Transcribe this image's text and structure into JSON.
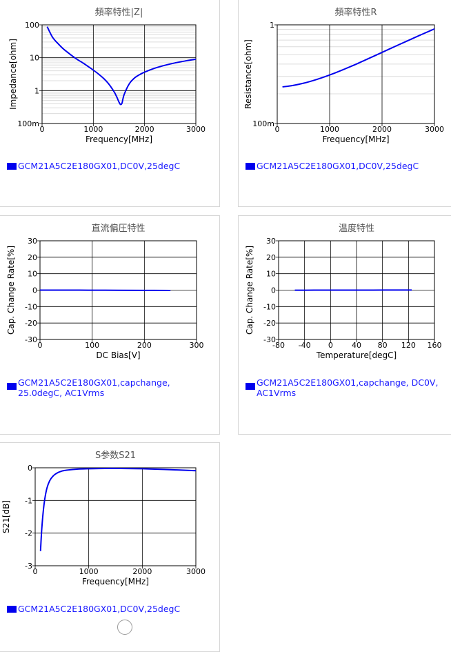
{
  "charts": [
    {
      "id": "impedance",
      "title": "頻率特性|Z|",
      "legend": [
        "GCM21A5C2E180GX01,DC0V,25degC"
      ],
      "chart_data": {
        "type": "line",
        "title": "頻率特性|Z|",
        "xlabel": "Frequency[MHz]",
        "ylabel": "Impedance[ohm]",
        "xlim": [
          0,
          3000
        ],
        "ylim": [
          0.1,
          100
        ],
        "yscale": "log",
        "xticks": [
          "0",
          "1000",
          "2000",
          "3000"
        ],
        "yticks": [
          "100m",
          "1",
          "10",
          "100"
        ],
        "series": [
          {
            "name": "GCM21A5C2E180GX01,DC0V,25degC",
            "color": "#0000ee",
            "x": [
              100,
              200,
              300,
              400,
              500,
              600,
              700,
              800,
              900,
              1000,
              1100,
              1200,
              1300,
              1400,
              1450,
              1500,
              1530,
              1560,
              1600,
              1700,
              1800,
              1900,
              2000,
              2200,
              2400,
              2600,
              2800,
              3000
            ],
            "y": [
              88,
              43,
              28,
              19.5,
              14.5,
              11,
              8.6,
              6.9,
              5.4,
              4.2,
              3.2,
              2.35,
              1.6,
              0.95,
              0.68,
              0.45,
              0.38,
              0.42,
              0.75,
              1.6,
              2.4,
              3.05,
              3.65,
              4.8,
              5.9,
              7.0,
              8.0,
              9.0
            ]
          }
        ]
      }
    },
    {
      "id": "resistance",
      "title": "頻率特性R",
      "legend": [
        "GCM21A5C2E180GX01,DC0V,25degC"
      ],
      "chart_data": {
        "type": "line",
        "title": "頻率特性R",
        "xlabel": "Frequency[MHz]",
        "ylabel": "Resistance[ohm]",
        "xlim": [
          0,
          3000
        ],
        "ylim": [
          0.1,
          1
        ],
        "yscale": "log",
        "xticks": [
          "0",
          "1000",
          "2000",
          "3000"
        ],
        "yticks": [
          "100m",
          "1"
        ],
        "series": [
          {
            "name": "GCM21A5C2E180GX01,DC0V,25degC",
            "color": "#0000ee",
            "x": [
              100,
              300,
              500,
              700,
              900,
              1100,
              1300,
              1500,
              1700,
              1900,
              2100,
              2300,
              2500,
              2700,
              2900,
              3000
            ],
            "y": [
              0.235,
              0.243,
              0.256,
              0.274,
              0.297,
              0.325,
              0.359,
              0.398,
              0.445,
              0.497,
              0.556,
              0.622,
              0.694,
              0.775,
              0.862,
              0.91
            ]
          }
        ]
      }
    },
    {
      "id": "dcbias",
      "title": "直流偏圧特性",
      "legend": [
        "GCM21A5C2E180GX01,capchange,",
        "25.0degC, AC1Vrms"
      ],
      "chart_data": {
        "type": "line",
        "title": "直流偏圧特性",
        "xlabel": "DC Bias[V]",
        "ylabel": "Cap. Change Rate[%]",
        "xlim": [
          0,
          300
        ],
        "ylim": [
          -30,
          30
        ],
        "xticks": [
          "0",
          "100",
          "200",
          "300"
        ],
        "yticks": [
          "-30",
          "-20",
          "-10",
          "0",
          "10",
          "20",
          "30"
        ],
        "series": [
          {
            "name": "GCM21A5C2E180GX01,capchange, 25.0degC, AC1Vrms",
            "color": "#0000ee",
            "x": [
              0,
              50,
              100,
              150,
              200,
              250
            ],
            "y": [
              0,
              0,
              -0.05,
              -0.1,
              -0.15,
              -0.2
            ]
          }
        ]
      }
    },
    {
      "id": "temperature",
      "title": "温度特性",
      "legend": [
        "GCM21A5C2E180GX01,capchange, DC0V,",
        "AC1Vrms"
      ],
      "chart_data": {
        "type": "line",
        "title": "温度特性",
        "xlabel": "Temperature[degC]",
        "ylabel": "Cap. Change Rate[%]",
        "xlim": [
          -80,
          160
        ],
        "ylim": [
          -30,
          30
        ],
        "xticks": [
          "-80",
          "-40",
          "0",
          "40",
          "80",
          "120",
          "160"
        ],
        "yticks": [
          "-30",
          "-20",
          "-10",
          "0",
          "10",
          "20",
          "30"
        ],
        "series": [
          {
            "name": "GCM21A5C2E180GX01,capchange, DC0V, AC1Vrms",
            "color": "#0000ee",
            "x": [
              -55,
              -25,
              0,
              25,
              55,
              85,
              125
            ],
            "y": [
              -0.05,
              -0.02,
              0,
              0,
              0.02,
              0.03,
              0.05
            ]
          }
        ]
      }
    },
    {
      "id": "s21",
      "title": "S参数S21",
      "legend": [
        "GCM21A5C2E180GX01,DC0V,25degC"
      ],
      "chart_data": {
        "type": "line",
        "title": "S参数S21",
        "xlabel": "Frequency[MHz]",
        "ylabel": "S21[dB]",
        "xlim": [
          0,
          3000
        ],
        "ylim": [
          -3,
          0
        ],
        "xticks": [
          "0",
          "1000",
          "2000",
          "3000"
        ],
        "yticks": [
          "-3",
          "-2",
          "-1",
          "0"
        ],
        "series": [
          {
            "name": "GCM21A5C2E180GX01,DC0V,25degC",
            "color": "#0000ee",
            "x": [
              100,
              120,
              150,
              180,
              220,
              270,
              330,
              400,
              500,
              600,
              800,
              1000,
              1300,
              1600,
              2000,
              2400,
              2700,
              3000
            ],
            "y": [
              -2.55,
              -1.95,
              -1.35,
              -0.95,
              -0.62,
              -0.4,
              -0.26,
              -0.17,
              -0.1,
              -0.07,
              -0.04,
              -0.03,
              -0.02,
              -0.02,
              -0.03,
              -0.05,
              -0.07,
              -0.09
            ]
          }
        ]
      }
    }
  ]
}
